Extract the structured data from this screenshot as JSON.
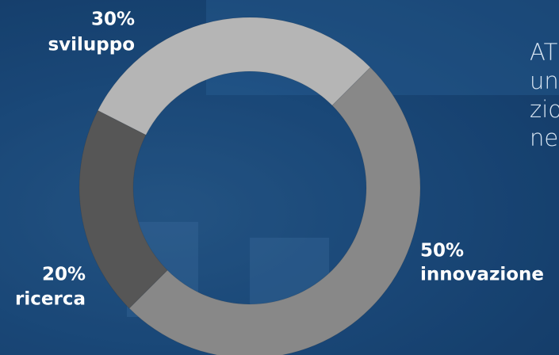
{
  "chart_data": {
    "type": "pie",
    "categories": [
      "innovazione",
      "ricerca",
      "sviluppo"
    ],
    "values": [
      50,
      20,
      30
    ],
    "value_labels": [
      "50%",
      "20%",
      "30%"
    ],
    "colors": [
      "#888888",
      "#565656",
      "#b5b5b5"
    ],
    "donut": true
  },
  "side_text": [
    "AT",
    "un",
    "zio",
    "ne"
  ]
}
